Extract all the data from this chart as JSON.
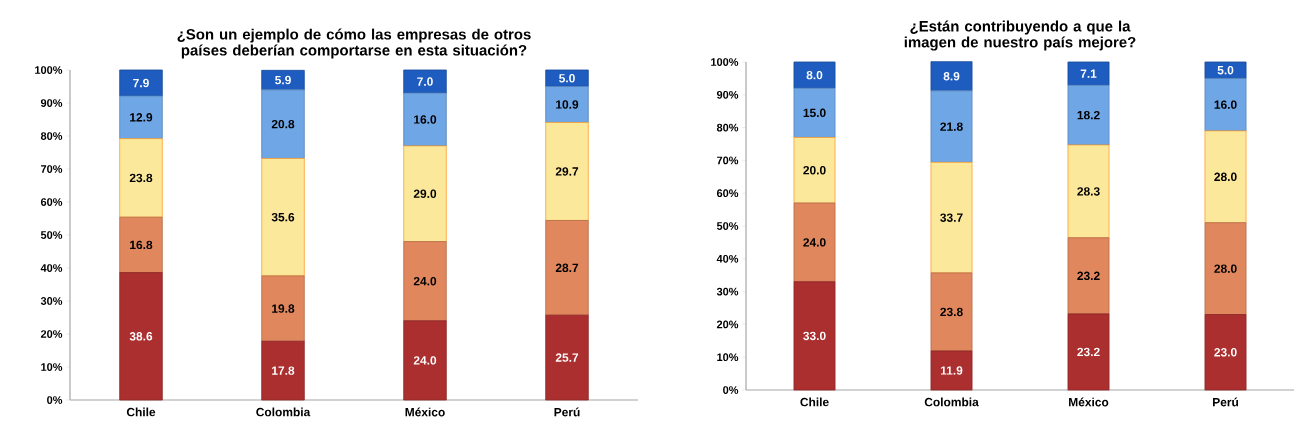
{
  "chart_data": [
    {
      "type": "bar",
      "stacked": true,
      "title": "¿Son un ejemplo de cómo las empresas de otros países deberían comportarse en esta situación?",
      "categories": [
        "Chile",
        "Colombia",
        "México",
        "Perú"
      ],
      "ylim": [
        0,
        100
      ],
      "yticks": [
        {
          "value": 0,
          "label": "0%"
        },
        {
          "value": 10,
          "label": "10%"
        },
        {
          "value": 20,
          "label": "20%"
        },
        {
          "value": 30,
          "label": "30%"
        },
        {
          "value": 40,
          "label": "40%"
        },
        {
          "value": 50,
          "label": "50%"
        },
        {
          "value": 60,
          "label": "60%"
        },
        {
          "value": 70,
          "label": "70%"
        },
        {
          "value": 80,
          "label": "80%"
        },
        {
          "value": 90,
          "label": "90%"
        },
        {
          "value": 100,
          "label": "100%"
        }
      ],
      "series": [
        {
          "color": "#ac2f2f",
          "values": [
            38.6,
            17.8,
            24.0,
            25.7
          ],
          "value_labels": [
            "38.6",
            "17.8",
            "24.0",
            "25.7"
          ]
        },
        {
          "color": "#e0875e",
          "values": [
            16.8,
            19.8,
            24.0,
            28.7
          ],
          "value_labels": [
            "16.8",
            "19.8",
            "24.0",
            "28.7"
          ]
        },
        {
          "color": "#fbe89a",
          "values": [
            23.8,
            35.6,
            29.0,
            29.7
          ],
          "value_labels": [
            "23.8",
            "35.6",
            "29.0",
            "29.7"
          ]
        },
        {
          "color": "#6fa6e6",
          "values": [
            12.9,
            20.8,
            16.0,
            10.9
          ],
          "value_labels": [
            "12.9",
            "20.8",
            "16.0",
            "10.9"
          ]
        },
        {
          "color": "#1e5cbf",
          "values": [
            7.9,
            5.9,
            7.0,
            5.0
          ],
          "value_labels": [
            "7.9",
            "5.9",
            "7.0",
            "5.0"
          ]
        }
      ]
    },
    {
      "type": "bar",
      "stacked": true,
      "title": "¿Están contribuyendo a que la imagen de nuestro país mejore?",
      "categories": [
        "Chile",
        "Colombia",
        "México",
        "Perú"
      ],
      "ylim": [
        0,
        100
      ],
      "yticks": [
        {
          "value": 0,
          "label": "0%"
        },
        {
          "value": 10,
          "label": "10%"
        },
        {
          "value": 20,
          "label": "20%"
        },
        {
          "value": 30,
          "label": "30%"
        },
        {
          "value": 40,
          "label": "40%"
        },
        {
          "value": 50,
          "label": "50%"
        },
        {
          "value": 60,
          "label": "60%"
        },
        {
          "value": 70,
          "label": "70%"
        },
        {
          "value": 80,
          "label": "80%"
        },
        {
          "value": 90,
          "label": "90%"
        },
        {
          "value": 100,
          "label": "100%"
        }
      ],
      "series": [
        {
          "color": "#ac2f2f",
          "values": [
            33.0,
            11.9,
            23.2,
            23.0
          ],
          "value_labels": [
            "33.0",
            "11.9",
            "23.2",
            "23.0"
          ]
        },
        {
          "color": "#e0875e",
          "values": [
            24.0,
            23.8,
            23.2,
            28.0
          ],
          "value_labels": [
            "24.0",
            "23.8",
            "23.2",
            "28.0"
          ]
        },
        {
          "color": "#fbe89a",
          "values": [
            20.0,
            33.7,
            28.3,
            28.0
          ],
          "value_labels": [
            "20.0",
            "33.7",
            "28.3",
            "28.0"
          ]
        },
        {
          "color": "#6fa6e6",
          "values": [
            15.0,
            21.8,
            18.2,
            16.0
          ],
          "value_labels": [
            "15.0",
            "21.8",
            "18.2",
            "16.0"
          ]
        },
        {
          "color": "#1e5cbf",
          "values": [
            8.0,
            8.9,
            7.1,
            5.0
          ],
          "value_labels": [
            "8.0",
            "8.9",
            "7.1",
            "5.0"
          ]
        }
      ]
    }
  ]
}
